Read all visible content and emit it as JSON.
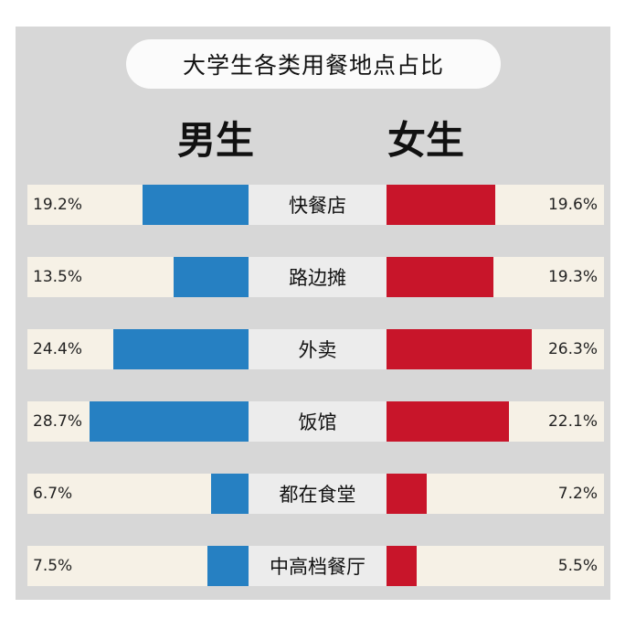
{
  "chart_data": {
    "type": "bar",
    "title": "大学生各类用餐地点占比",
    "categories": [
      "快餐店",
      "路边摊",
      "外卖",
      "饭馆",
      "都在食堂",
      "中高档餐厅"
    ],
    "series": [
      {
        "name": "男生",
        "values": [
          19.2,
          13.5,
          24.4,
          28.7,
          6.7,
          7.5
        ],
        "labels": [
          "19.2%",
          "13.5%",
          "24.4%",
          "28.7%",
          "6.7%",
          "7.5%"
        ],
        "color": "#2680c2"
      },
      {
        "name": "女生",
        "values": [
          19.6,
          19.3,
          26.3,
          22.1,
          7.2,
          5.5
        ],
        "labels": [
          "19.6%",
          "19.3%",
          "26.3%",
          "22.1%",
          "7.2%",
          "5.5%"
        ],
        "color": "#c8152a"
      }
    ],
    "unit": "%",
    "orientation": "horizontal-butterfly"
  }
}
